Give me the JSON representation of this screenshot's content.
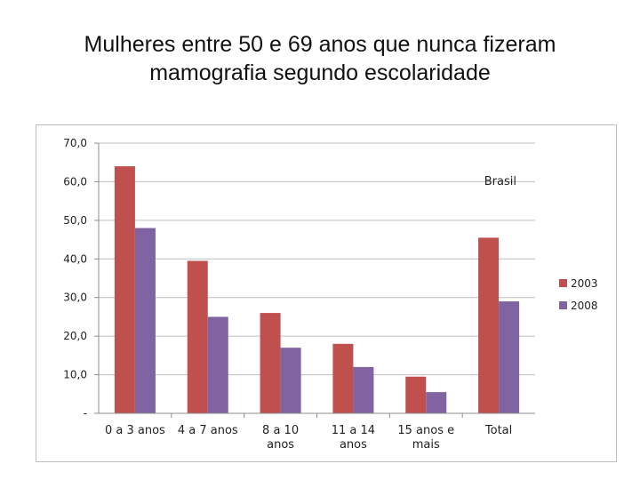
{
  "header": {
    "title_line1": "Mulheres entre 50 e 69 anos que nunca fizeram",
    "title_line2": "mamografia segundo escolaridade"
  },
  "chart_data": {
    "type": "bar",
    "title": "Mulheres entre 50 e 69 anos que nunca fizeram mamografia segundo escolaridade",
    "annotation": "Brasil",
    "categories": [
      [
        "0 a 3 anos"
      ],
      [
        "4 a 7 anos"
      ],
      [
        "8 a 10",
        "anos"
      ],
      [
        "11 a 14",
        "anos"
      ],
      [
        "15 anos e",
        "mais"
      ],
      [
        "Total"
      ]
    ],
    "series": [
      {
        "name": "2003",
        "color": "#c0504d",
        "values": [
          64.0,
          39.5,
          26.0,
          18.0,
          9.5,
          45.5
        ]
      },
      {
        "name": "2008",
        "color": "#8064a2",
        "values": [
          48.0,
          25.0,
          17.0,
          12.0,
          5.5,
          29.0
        ]
      }
    ],
    "ylim": [
      0,
      70
    ],
    "yticks": [
      {
        "value": 0,
        "label": "-"
      },
      {
        "value": 10,
        "label": "10,0"
      },
      {
        "value": 20,
        "label": "20,0"
      },
      {
        "value": 30,
        "label": "30,0"
      },
      {
        "value": 40,
        "label": "40,0"
      },
      {
        "value": 50,
        "label": "50,0"
      },
      {
        "value": 60,
        "label": "60,0"
      },
      {
        "value": 70,
        "label": "70,0"
      }
    ],
    "grid": true,
    "legend_position": "right",
    "xlabel": "",
    "ylabel": ""
  }
}
